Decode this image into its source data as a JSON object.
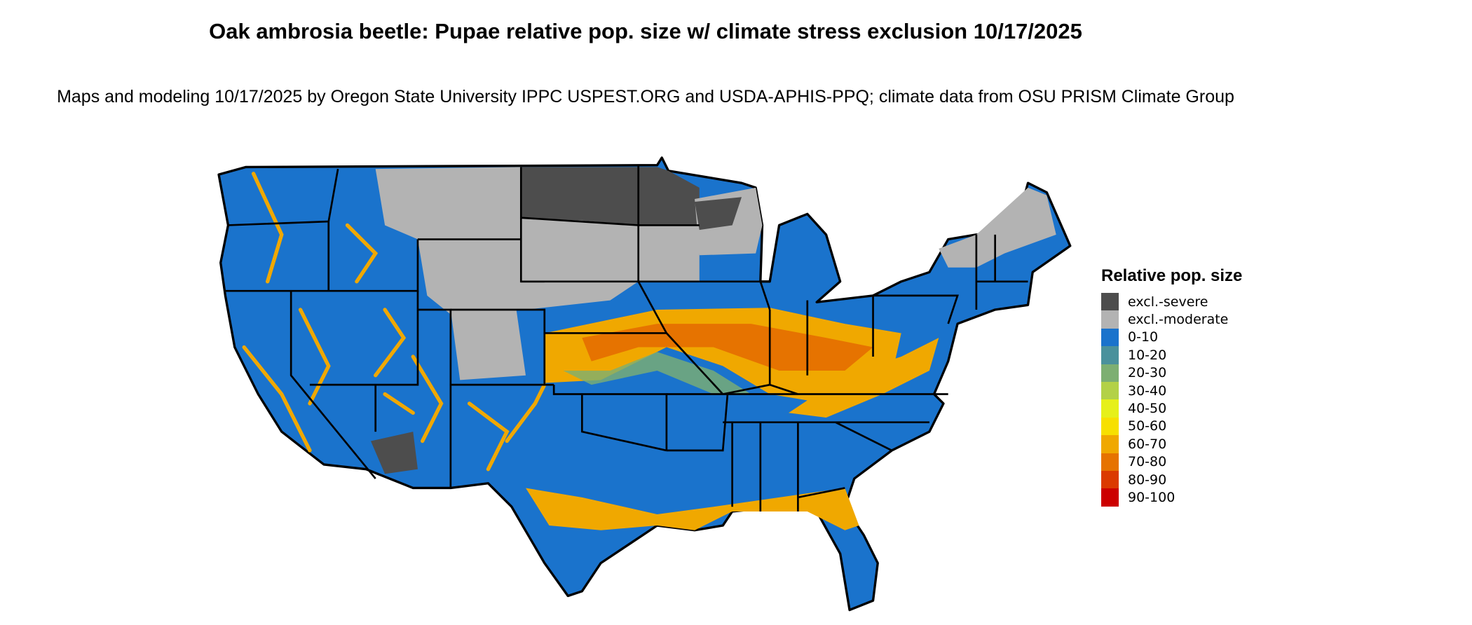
{
  "title": "Oak ambrosia beetle: Pupae relative pop. size w/ climate stress exclusion 10/17/2025",
  "subtitle": "Maps and modeling 10/17/2025 by Oregon State University IPPC USPEST.ORG and USDA-APHIS-PPQ; climate data from OSU PRISM Climate Group",
  "map_region": "Contiguous United States",
  "legend": {
    "title": "Relative pop. size",
    "items": [
      {
        "label": "excl.-severe",
        "color": "#4d4d4d"
      },
      {
        "label": "excl.-moderate",
        "color": "#b3b3b3"
      },
      {
        "label": "0-10",
        "color": "#1a73cc"
      },
      {
        "label": "10-20",
        "color": "#4a919c"
      },
      {
        "label": "20-30",
        "color": "#7daf72"
      },
      {
        "label": "30-40",
        "color": "#b3d147"
      },
      {
        "label": "40-50",
        "color": "#e6f01a"
      },
      {
        "label": "50-60",
        "color": "#f7e000"
      },
      {
        "label": "60-70",
        "color": "#f0a800"
      },
      {
        "label": "70-80",
        "color": "#e67300"
      },
      {
        "label": "80-90",
        "color": "#db3a00"
      },
      {
        "label": "90-100",
        "color": "#cc0000"
      }
    ]
  }
}
